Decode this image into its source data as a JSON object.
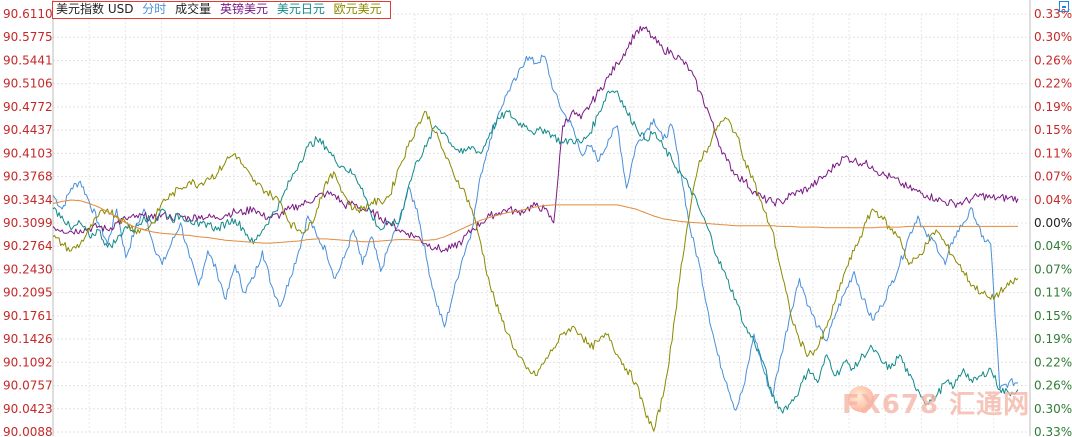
{
  "legend": {
    "items": [
      {
        "label": "美元指数 USD",
        "color": "#222222"
      },
      {
        "label": "分时",
        "color": "#4a90d9"
      },
      {
        "label": "成交量",
        "color": "#222222"
      },
      {
        "label": "英镑美元",
        "color": "#7b1a84"
      },
      {
        "label": "美元日元",
        "color": "#138a8a"
      },
      {
        "label": "欧元美元",
        "color": "#8a8a00"
      }
    ]
  },
  "watermark": {
    "text": "FX678 汇通网"
  },
  "chart_data": {
    "type": "line",
    "title": "美元指数 USD",
    "grid": true,
    "y_left": {
      "ticks": [
        "90.6110",
        "90.5775",
        "90.5441",
        "90.5106",
        "90.4772",
        "90.4437",
        "90.4103",
        "90.3768",
        "90.3434",
        "90.3099",
        "90.2764",
        "90.2430",
        "90.2095",
        "90.1761",
        "90.1426",
        "90.1092",
        "90.0757",
        "90.0423",
        "90.0088"
      ],
      "range": [
        90.0088,
        90.611
      ]
    },
    "y_right": {
      "ticks": [
        "0.33%",
        "0.30%",
        "0.26%",
        "0.22%",
        "0.19%",
        "0.15%",
        "0.11%",
        "0.07%",
        "0.04%",
        "0.00%",
        "0.04%",
        "0.07%",
        "0.11%",
        "0.15%",
        "0.19%",
        "0.22%",
        "0.26%",
        "0.30%",
        "0.33%"
      ],
      "colors": {
        "up": "#c62828",
        "flat": "#222222",
        "down": "#2e7d32"
      }
    },
    "series": [
      {
        "name": "美元指数 USD",
        "color": "#4a90d9",
        "values": [
          90.35,
          90.33,
          90.36,
          90.37,
          90.34,
          90.31,
          90.28,
          90.33,
          90.26,
          90.3,
          90.33,
          90.28,
          90.25,
          90.28,
          90.31,
          90.26,
          90.22,
          90.27,
          90.24,
          90.2,
          90.25,
          90.21,
          90.23,
          90.27,
          90.22,
          90.19,
          90.23,
          90.27,
          90.32,
          90.29,
          90.27,
          90.23,
          90.26,
          90.3,
          90.25,
          90.29,
          90.24,
          90.28,
          90.31,
          90.36,
          90.33,
          90.26,
          90.2,
          90.16,
          90.21,
          90.26,
          90.3,
          90.38,
          90.43,
          90.47,
          90.5,
          90.52,
          90.55,
          90.54,
          90.55,
          90.5,
          90.47,
          90.45,
          90.41,
          90.42,
          90.4,
          90.43,
          90.45,
          90.36,
          90.42,
          90.44,
          90.46,
          90.43,
          90.45,
          90.38,
          90.3,
          90.25,
          90.18,
          90.12,
          90.08,
          90.04,
          90.08,
          90.15,
          90.1,
          90.06,
          90.12,
          90.18,
          90.23,
          90.19,
          90.16,
          90.14,
          90.18,
          90.21,
          90.24,
          90.2,
          90.17,
          90.19,
          90.22,
          90.25,
          90.29,
          90.32,
          90.29,
          90.28,
          90.25,
          90.29,
          90.31,
          90.33,
          90.29,
          90.28,
          90.07,
          90.08,
          90.08
        ]
      },
      {
        "name": "英镑美元",
        "color": "#7b1a84",
        "values": [
          90.305,
          90.3,
          90.298,
          90.3,
          90.302,
          90.305,
          90.3,
          90.31,
          90.316,
          90.318,
          90.32,
          90.316,
          90.322,
          90.318,
          90.32,
          90.316,
          90.32,
          90.318,
          90.318,
          90.322,
          90.326,
          90.325,
          90.332,
          90.32,
          90.318,
          90.322,
          90.33,
          90.335,
          90.34,
          90.348,
          90.352,
          90.35,
          90.335,
          90.338,
          90.33,
          90.325,
          90.318,
          90.31,
          90.3,
          90.295,
          90.29,
          90.28,
          90.275,
          90.27,
          90.275,
          90.285,
          90.3,
          90.31,
          90.32,
          90.325,
          90.33,
          90.325,
          90.33,
          90.335,
          90.33,
          90.31,
          90.45,
          90.47,
          90.46,
          90.48,
          90.5,
          90.52,
          90.54,
          90.56,
          90.585,
          90.59,
          90.575,
          90.56,
          90.555,
          90.545,
          90.53,
          90.5,
          90.47,
          90.43,
          90.4,
          90.38,
          90.37,
          90.355,
          90.345,
          90.34,
          90.34,
          90.35,
          90.355,
          90.36,
          90.37,
          90.38,
          90.395,
          90.405,
          90.4,
          90.396,
          90.392,
          90.38,
          90.376,
          90.368,
          90.36,
          90.355,
          90.35,
          90.345,
          90.34,
          90.338,
          90.34,
          90.345,
          90.35,
          90.346,
          90.346,
          90.346,
          90.345
        ]
      },
      {
        "name": "美元日元",
        "color": "#138a8a",
        "values": [
          90.33,
          90.32,
          90.3,
          90.31,
          90.29,
          90.3,
          90.275,
          90.285,
          90.305,
          90.3,
          90.32,
          90.31,
          90.33,
          90.315,
          90.32,
          90.315,
          90.305,
          90.31,
          90.3,
          90.31,
          90.315,
          90.3,
          90.28,
          90.3,
          90.32,
          90.34,
          90.37,
          90.395,
          90.42,
          90.43,
          90.42,
          90.4,
          90.39,
          90.38,
          90.36,
          90.32,
          90.3,
          90.31,
          90.31,
          90.36,
          90.4,
          90.42,
          90.45,
          90.44,
          90.42,
          90.41,
          90.42,
          90.41,
          90.44,
          90.46,
          90.47,
          90.455,
          90.45,
          90.44,
          90.445,
          90.435,
          90.425,
          90.43,
          90.425,
          90.44,
          90.47,
          90.5,
          90.5,
          90.47,
          90.45,
          90.43,
          90.44,
          90.42,
          90.4,
          90.38,
          90.36,
          90.33,
          90.3,
          90.26,
          90.23,
          90.2,
          90.16,
          90.14,
          90.11,
          90.06,
          90.04,
          90.05,
          90.07,
          90.1,
          90.08,
          90.12,
          90.09,
          90.11,
          90.1,
          90.12,
          90.13,
          90.11,
          90.1,
          90.12,
          90.09,
          90.07,
          90.05,
          90.06,
          90.08,
          90.075,
          90.1,
          90.08,
          90.09,
          90.1,
          90.07,
          90.065,
          90.07
        ]
      },
      {
        "name": "欧元美元",
        "color": "#8a8a00",
        "values": [
          90.29,
          90.28,
          90.27,
          90.28,
          90.3,
          90.32,
          90.33,
          90.32,
          90.31,
          90.3,
          90.3,
          90.31,
          90.34,
          90.35,
          90.36,
          90.37,
          90.365,
          90.375,
          90.38,
          90.4,
          90.41,
          90.39,
          90.37,
          90.36,
          90.35,
          90.34,
          90.31,
          90.3,
          90.3,
          90.33,
          90.37,
          90.38,
          90.35,
          90.33,
          90.33,
          90.34,
          90.34,
          90.35,
          90.39,
          90.42,
          90.45,
          90.47,
          90.44,
          90.41,
          90.38,
          90.36,
          90.33,
          90.28,
          90.22,
          90.18,
          90.15,
          90.12,
          90.1,
          90.09,
          90.11,
          90.13,
          90.15,
          90.16,
          90.15,
          90.13,
          90.14,
          90.15,
          90.12,
          90.1,
          90.08,
          90.04,
          90.01,
          90.06,
          90.14,
          90.25,
          90.33,
          90.4,
          90.42,
          90.45,
          90.46,
          90.44,
          90.4,
          90.37,
          90.33,
          90.3,
          90.24,
          90.18,
          90.14,
          90.12,
          90.13,
          90.16,
          90.2,
          90.24,
          90.27,
          90.3,
          90.33,
          90.32,
          90.3,
          90.29,
          90.25,
          90.26,
          90.28,
          90.3,
          90.28,
          90.26,
          90.24,
          90.22,
          90.21,
          90.2,
          90.21,
          90.22,
          90.23
        ]
      },
      {
        "name": "成交量",
        "color": "#e08a3c",
        "values": [
          90.338,
          90.341,
          90.343,
          90.342,
          90.338,
          90.333,
          90.326,
          90.318,
          90.31,
          90.304,
          90.3,
          90.297,
          90.295,
          90.294,
          90.293,
          90.292,
          90.29,
          90.289,
          90.287,
          90.285,
          90.284,
          90.283,
          90.282,
          90.281,
          90.281,
          90.282,
          90.283,
          90.284,
          90.286,
          90.287,
          90.287,
          90.286,
          90.285,
          90.284,
          90.283,
          90.283,
          90.284,
          90.285,
          90.286,
          90.286,
          90.285,
          90.285,
          90.286,
          90.29,
          90.296,
          90.302,
          90.308,
          90.314,
          90.318,
          90.322,
          90.325,
          90.327,
          90.33,
          90.333,
          90.335,
          90.336,
          90.336,
          90.336,
          90.336,
          90.336,
          90.336,
          90.336,
          90.336,
          90.333,
          90.33,
          90.325,
          90.32,
          90.316,
          90.314,
          90.312,
          90.311,
          90.31,
          90.309,
          90.308,
          90.307,
          90.306,
          90.306,
          90.306,
          90.306,
          90.306,
          90.305,
          90.305,
          90.304,
          90.304,
          90.304,
          90.303,
          90.303,
          90.303,
          90.303,
          90.303,
          90.303,
          90.304,
          90.304,
          90.304,
          90.305,
          90.305,
          90.305,
          90.305,
          90.305,
          90.305,
          90.305,
          90.305,
          90.305,
          90.305,
          90.305,
          90.305,
          90.305
        ]
      }
    ]
  }
}
